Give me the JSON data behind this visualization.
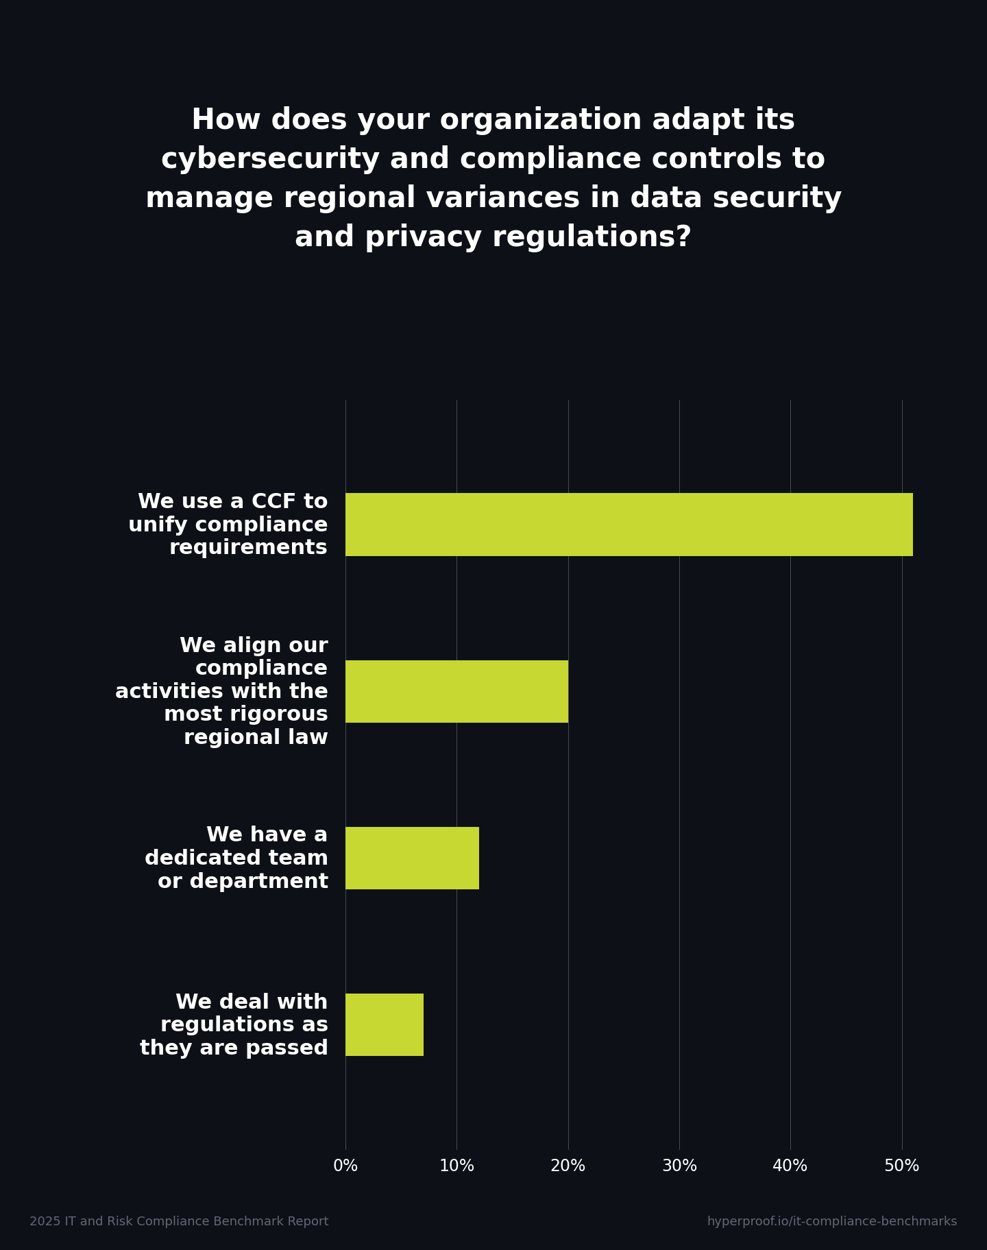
{
  "title": "How does your organization adapt its\ncybersecurity and compliance controls to\nmanage regional variances in data security\nand privacy regulations?",
  "categories": [
    "We use a CCF to\nunify compliance\nrequirements",
    "We align our\ncompliance\nactivities with the\nmost rigorous\nregional law",
    "We have a\ndedicated team\nor department",
    "We deal with\nregulations as\nthey are passed"
  ],
  "values": [
    51,
    20,
    12,
    7
  ],
  "bar_color": "#c8d832",
  "background_color": "#0d1117",
  "text_color": "#ffffff",
  "grid_color": "#ffffff",
  "title_fontsize": 30,
  "label_fontsize": 22,
  "tick_fontsize": 17,
  "footer_left": "2025 IT and Risk Compliance Benchmark Report",
  "footer_right": "hyperproof.io/it-compliance-benchmarks",
  "footer_color": "#666677",
  "footer_fontsize": 13,
  "xlim": [
    0,
    55
  ],
  "xticks": [
    0,
    10,
    20,
    30,
    40,
    50
  ],
  "xtick_labels": [
    "0%",
    "10%",
    "20%",
    "30%",
    "40%",
    "50%"
  ]
}
